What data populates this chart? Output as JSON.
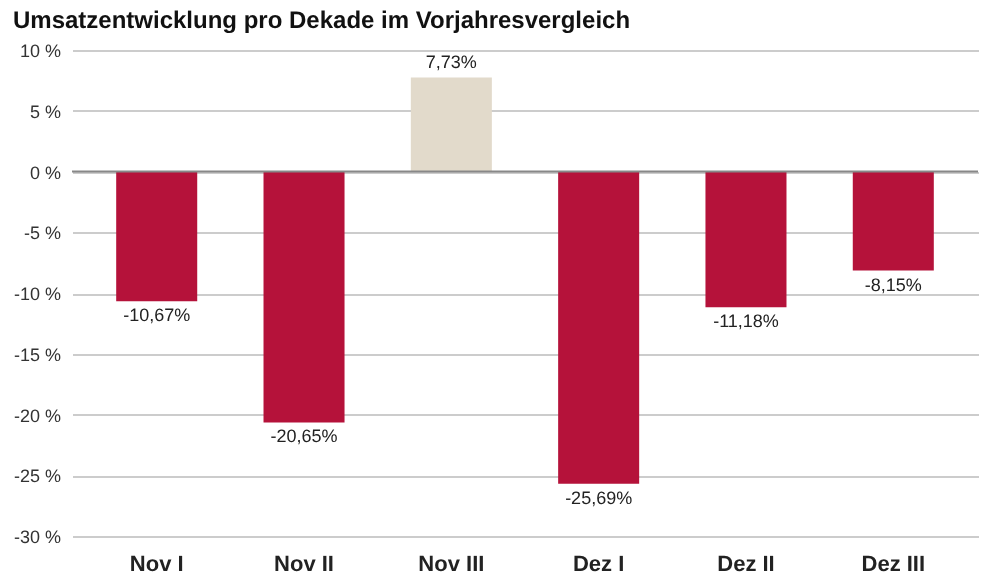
{
  "chart_data": {
    "type": "bar",
    "title": "Umsatzentwicklung pro Dekade im Vorjahresvergleich",
    "categories": [
      "Nov I",
      "Nov II",
      "Nov III",
      "Dez I",
      "Dez II",
      "Dez III"
    ],
    "values": [
      -10.67,
      -20.65,
      7.73,
      -25.69,
      -11.18,
      -8.15
    ],
    "colors": [
      "#b5123a",
      "#b5123a",
      "#e2dacb",
      "#b5123a",
      "#b5123a",
      "#b5123a"
    ],
    "value_labels": [
      "-10,67%",
      "-20,65%",
      "7,73%",
      "-25,69%",
      "-11,18%",
      "-8,15%"
    ],
    "ylim": [
      -30,
      10
    ],
    "yticks": [
      {
        "value": -30,
        "label": "-30 %"
      },
      {
        "value": -25,
        "label": "-25 %"
      },
      {
        "value": -20,
        "label": "-20 %"
      },
      {
        "value": -15,
        "label": "-15 %"
      },
      {
        "value": -10,
        "label": "-10 %"
      },
      {
        "value": -5,
        "label": "-5 %"
      },
      {
        "value": 0,
        "label": "0 %"
      },
      {
        "value": 5,
        "label": "5 %"
      },
      {
        "value": 10,
        "label": "10 %"
      }
    ],
    "grid": "y"
  }
}
